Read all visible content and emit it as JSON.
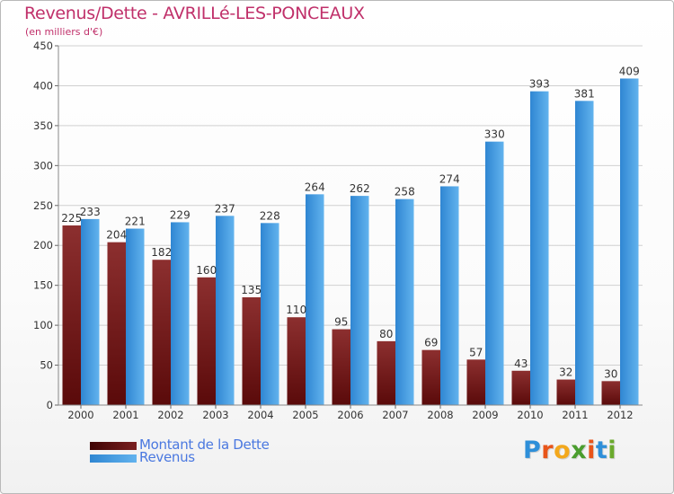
{
  "title": "Revenus/Dette - AVRILLé-LES-PONCEAUX",
  "subtitle": "(en milliers d'€)",
  "logo": {
    "letters": [
      "P",
      "r",
      "o",
      "x",
      "i",
      "t",
      "i"
    ],
    "colors": [
      "#2e8fd9",
      "#e8551a",
      "#f3a81c",
      "#4a9d2e",
      "#e8551a",
      "#2e8fd9",
      "#6aaa2d"
    ]
  },
  "colors": {
    "dette_dark": "#5a0a0a",
    "dette_light": "#8c2f2f",
    "revenus_dark": "#2f86d2",
    "revenus_light": "#62b3ee",
    "grid": "#d0d0d0",
    "axis_text": "#333333"
  },
  "chart_data": {
    "type": "bar",
    "title": "Revenus/Dette - AVRILLé-LES-PONCEAUX",
    "subtitle": "(en milliers d'€)",
    "categories": [
      "2000",
      "2001",
      "2002",
      "2003",
      "2004",
      "2005",
      "2006",
      "2007",
      "2008",
      "2009",
      "2010",
      "2011",
      "2012"
    ],
    "series": [
      {
        "name": "Montant de la Dette",
        "values": [
          225,
          204,
          182,
          160,
          135,
          110,
          95,
          80,
          69,
          57,
          43,
          32,
          30
        ]
      },
      {
        "name": "Revenus",
        "values": [
          233,
          221,
          229,
          237,
          228,
          264,
          262,
          258,
          274,
          330,
          393,
          381,
          409
        ]
      }
    ],
    "ylim": [
      0,
      450
    ],
    "yticks": [
      0,
      50,
      100,
      150,
      200,
      250,
      300,
      350,
      400,
      450
    ],
    "grid": true,
    "legend_position": "bottom-left"
  }
}
